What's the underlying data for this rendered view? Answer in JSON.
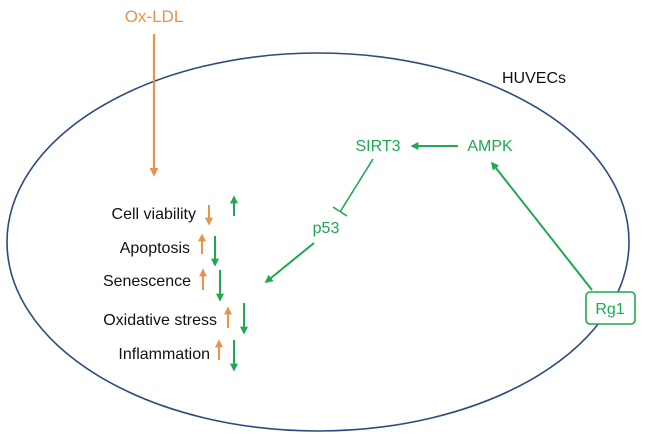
{
  "diagram": {
    "inducer": {
      "label": "Ox-LDL",
      "color": "#E8924A"
    },
    "cell": {
      "label": "HUVECs",
      "border_color": "#2C4B7D"
    },
    "treatment": {
      "label": "Rg1",
      "color": "#1FA84F"
    },
    "pathway": {
      "kinase": "AMPK",
      "deacetylase": "SIRT3",
      "target": "p53"
    },
    "outcomes": [
      {
        "label": "Cell viability",
        "oxldl_effect": "down",
        "rg1_effect": "up"
      },
      {
        "label": "Apoptosis",
        "oxldl_effect": "up",
        "rg1_effect": "down"
      },
      {
        "label": "Senescence",
        "oxldl_effect": "up",
        "rg1_effect": "down"
      },
      {
        "label": "Oxidative stress",
        "oxldl_effect": "up",
        "rg1_effect": "down"
      },
      {
        "label": "Inflammation",
        "oxldl_effect": "up",
        "rg1_effect": "down"
      }
    ]
  }
}
